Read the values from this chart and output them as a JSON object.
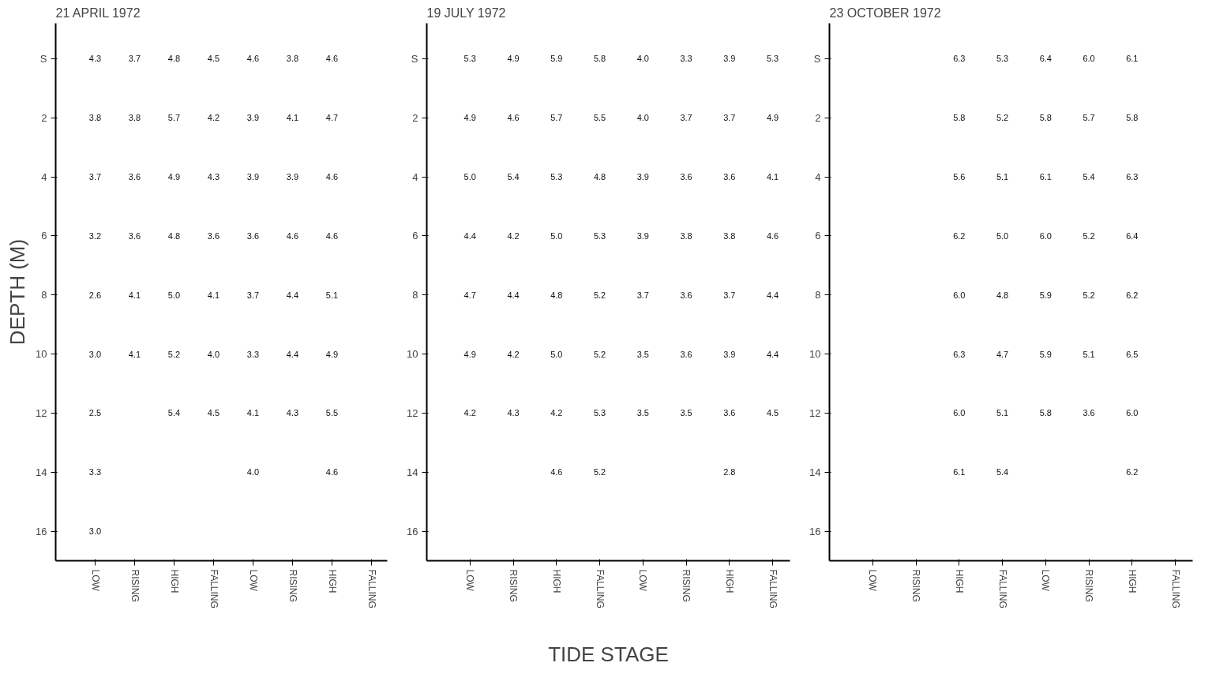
{
  "chart_data": [
    {
      "type": "heatmap",
      "title": "21 APRIL 1972",
      "ylabel": "DEPTH (M)",
      "data_labels": true,
      "grid": false,
      "categories": [
        "LOW",
        "RISING",
        "HIGH",
        "FALLING",
        "LOW",
        "RISING",
        "HIGH",
        "FALLING"
      ],
      "y_categories": [
        "S",
        "2",
        "4",
        "6",
        "8",
        "10",
        "12",
        "14",
        "16"
      ],
      "cells": [
        [
          4.3,
          3.7,
          4.8,
          4.5,
          4.6,
          3.8,
          4.6,
          null
        ],
        [
          3.8,
          3.8,
          5.7,
          4.2,
          3.9,
          4.1,
          4.7,
          null
        ],
        [
          3.7,
          3.6,
          4.9,
          4.3,
          3.9,
          3.9,
          4.6,
          null
        ],
        [
          3.2,
          3.6,
          4.8,
          3.6,
          3.6,
          4.6,
          4.6,
          null
        ],
        [
          2.6,
          4.1,
          5.0,
          4.1,
          3.7,
          4.4,
          5.1,
          null
        ],
        [
          3.0,
          4.1,
          5.2,
          4.0,
          3.3,
          4.4,
          4.9,
          null
        ],
        [
          2.5,
          null,
          5.4,
          4.5,
          4.1,
          4.3,
          5.5,
          null
        ],
        [
          3.3,
          null,
          null,
          null,
          4.0,
          null,
          4.6,
          null
        ],
        [
          3.0,
          null,
          null,
          null,
          null,
          null,
          null,
          null
        ]
      ],
      "cell_labels": [
        [
          "4.3",
          "3.7",
          "4.8",
          "4.5",
          "4.6",
          "3.8",
          "4.6",
          null
        ],
        [
          "3.8",
          "3.8",
          "5.7",
          "4.2",
          "3.9",
          "4.1",
          "4.7",
          null
        ],
        [
          "3.7",
          "3.6",
          "4.9",
          "4.3",
          "3.9",
          "3.9",
          "4.6",
          null
        ],
        [
          "3.2",
          "3.6",
          "4.8",
          "3.6",
          "3.6",
          "4.6",
          "4.6",
          null
        ],
        [
          "2.6",
          "4.1",
          "5.0",
          "4.1",
          "3.7",
          "4.4",
          "5.1",
          null
        ],
        [
          "3.0",
          "4.1",
          "5.2",
          "4.0",
          "3.3",
          "4.4",
          "4.9",
          null
        ],
        [
          "2.5",
          null,
          "5.4",
          "4.5",
          "4.1",
          "4.3",
          "5.5",
          null
        ],
        [
          "3.3",
          null,
          null,
          null,
          "4.0",
          null,
          "4.6",
          null
        ],
        [
          "3.0",
          null,
          null,
          null,
          null,
          null,
          null,
          null
        ]
      ]
    },
    {
      "type": "heatmap",
      "title": "19 JULY 1972",
      "xlabel": "TIDE STAGE",
      "data_labels": true,
      "grid": false,
      "categories": [
        "LOW",
        "RISING",
        "HIGH",
        "FALLING",
        "LOW",
        "RISING",
        "HIGH",
        "FALLING"
      ],
      "y_categories": [
        "S",
        "2",
        "4",
        "6",
        "8",
        "10",
        "12",
        "14",
        "16"
      ],
      "cells": [
        [
          5.3,
          4.9,
          5.9,
          5.8,
          4.0,
          3.3,
          3.9,
          5.3
        ],
        [
          4.9,
          4.6,
          5.7,
          5.5,
          4.0,
          3.7,
          3.7,
          4.9
        ],
        [
          5.0,
          5.4,
          5.3,
          4.8,
          3.9,
          3.6,
          3.6,
          4.1
        ],
        [
          4.4,
          4.2,
          5.0,
          5.3,
          3.9,
          3.8,
          3.8,
          4.6
        ],
        [
          4.7,
          4.4,
          4.8,
          5.2,
          3.7,
          3.6,
          3.7,
          4.4
        ],
        [
          4.9,
          4.2,
          5.0,
          5.2,
          3.5,
          3.6,
          3.9,
          4.4
        ],
        [
          4.2,
          4.3,
          4.2,
          5.3,
          3.5,
          3.5,
          3.6,
          4.5
        ],
        [
          null,
          null,
          4.6,
          5.2,
          null,
          null,
          2.8,
          null
        ],
        [
          null,
          null,
          null,
          null,
          null,
          null,
          null,
          null
        ]
      ],
      "cell_labels": [
        [
          "5.3",
          "4.9",
          "5.9",
          "5.8",
          "4.0",
          "3.3",
          "3.9",
          "5.3"
        ],
        [
          "4.9",
          "4.6",
          "5.7",
          "5.5",
          "4.0",
          "3.7",
          "3.7",
          "4.9"
        ],
        [
          "5.0",
          "5.4",
          "5.3",
          "4.8",
          "3.9",
          "3.6",
          "3.6",
          "4.1"
        ],
        [
          "4.4",
          "4.2",
          "5.0",
          "5.3",
          "3.9",
          "3.8",
          "3.8",
          "4.6"
        ],
        [
          "4.7",
          "4.4",
          "4.8",
          "5.2",
          "3.7",
          "3.6",
          "3.7",
          "4.4"
        ],
        [
          "4.9",
          "4.2",
          "5.0",
          "5.2",
          "3.5",
          "3.6",
          "3.9",
          "4.4"
        ],
        [
          "4.2",
          "4.3",
          "4.2",
          "5.3",
          "3.5",
          "3.5",
          "3.6",
          "4.5"
        ],
        [
          null,
          null,
          "4.6",
          "5.2",
          null,
          null,
          "2.8",
          null
        ],
        [
          null,
          null,
          null,
          null,
          null,
          null,
          null,
          null
        ]
      ]
    },
    {
      "type": "heatmap",
      "title": "23 OCTOBER 1972",
      "data_labels": true,
      "grid": false,
      "categories": [
        "LOW",
        "RISING",
        "HIGH",
        "FALLING",
        "LOW",
        "RISING",
        "HIGH",
        "FALLING"
      ],
      "y_categories": [
        "S",
        "2",
        "4",
        "6",
        "8",
        "10",
        "12",
        "14",
        "16"
      ],
      "cells": [
        [
          null,
          null,
          6.3,
          5.3,
          6.4,
          6.0,
          6.1,
          null
        ],
        [
          null,
          null,
          5.8,
          5.2,
          5.8,
          5.7,
          5.8,
          null
        ],
        [
          null,
          null,
          5.6,
          5.1,
          6.1,
          5.4,
          6.3,
          null
        ],
        [
          null,
          null,
          6.2,
          5.0,
          6.0,
          5.2,
          6.4,
          null
        ],
        [
          null,
          null,
          6.0,
          4.8,
          5.9,
          5.2,
          6.2,
          null
        ],
        [
          null,
          null,
          6.3,
          4.7,
          5.9,
          5.1,
          6.5,
          null
        ],
        [
          null,
          null,
          6.0,
          5.1,
          5.8,
          3.6,
          6.0,
          null
        ],
        [
          null,
          null,
          6.1,
          5.4,
          null,
          null,
          6.2,
          null
        ],
        [
          null,
          null,
          null,
          null,
          null,
          null,
          null,
          null
        ]
      ],
      "cell_labels": [
        [
          null,
          null,
          "6.3",
          "5.3",
          "6.4",
          "6.0",
          "6.1",
          null
        ],
        [
          null,
          null,
          "5.8",
          "5.2",
          "5.8",
          "5.7",
          "5.8",
          null
        ],
        [
          null,
          null,
          "5.6",
          "5.1",
          "6.1",
          "5.4",
          "6.3",
          null
        ],
        [
          null,
          null,
          "6.2",
          "5.0",
          "6.0",
          "5.2",
          "6.4",
          null
        ],
        [
          null,
          null,
          "6.0",
          "4.8",
          "5.9",
          "5.2",
          "6.2",
          null
        ],
        [
          null,
          null,
          "6.3",
          "4.7",
          "5.9",
          "5.1",
          "6.5",
          null
        ],
        [
          null,
          null,
          "6.0",
          "5.1",
          "5.8",
          "3.6",
          "6.0",
          null
        ],
        [
          null,
          null,
          "6.1",
          "5.4",
          null,
          null,
          "6.2",
          null
        ],
        [
          null,
          null,
          null,
          null,
          null,
          null,
          null,
          null
        ]
      ]
    }
  ]
}
